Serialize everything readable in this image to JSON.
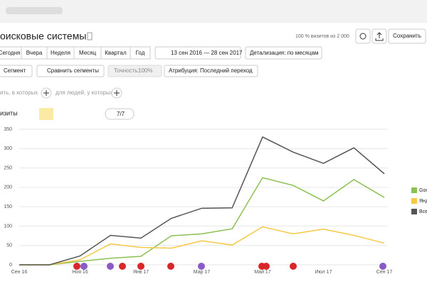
{
  "header": {
    "title": "оисковые системы",
    "visits_note": "100 % визитов из 2 000",
    "save": "Сохранить"
  },
  "periods": [
    "Сегодня",
    "Вчера",
    "Неделя",
    "Месяц",
    "Квартал",
    "Год"
  ],
  "date_range": "13 сен 2016 — 28 сен 2017",
  "detail": "Детализация: по месяцам",
  "filters": {
    "segment": "Сегмент",
    "compare": "Сравнить сегменты",
    "accuracy": "Точность:",
    "accuracy_value": "100%",
    "attribution": "Атрибуция: Последний переход"
  },
  "conditions": [
    "ить, в которых",
    "для людей, у которых"
  ],
  "chart_header": {
    "metric": "изиты",
    "count": "7/7"
  },
  "chart_data": {
    "type": "line",
    "categories": [
      "Сен 16",
      null,
      "Ноя 16",
      null,
      "Янв 17",
      null,
      "Мар 17",
      null,
      "Май 17",
      null,
      "Июл 17",
      null,
      "Сен 17"
    ],
    "series": [
      {
        "name": "Goo",
        "color": "#8cc152",
        "values": [
          0,
          0,
          9,
          17,
          22,
          75,
          80,
          93,
          225,
          205,
          165,
          220,
          174
        ]
      },
      {
        "name": "Янд",
        "color": "#f6c945",
        "values": [
          0,
          0,
          13,
          54,
          45,
          43,
          62,
          51,
          98,
          80,
          92,
          76,
          56
        ]
      },
      {
        "name": "Все",
        "color": "#555555",
        "values": [
          0,
          0,
          23,
          76,
          69,
          120,
          146,
          147,
          330,
          291,
          262,
          302,
          235
        ]
      }
    ],
    "ylim": [
      0,
      350
    ],
    "yticks": [
      0,
      50,
      100,
      150,
      200,
      250,
      300,
      350
    ],
    "grid": true
  }
}
